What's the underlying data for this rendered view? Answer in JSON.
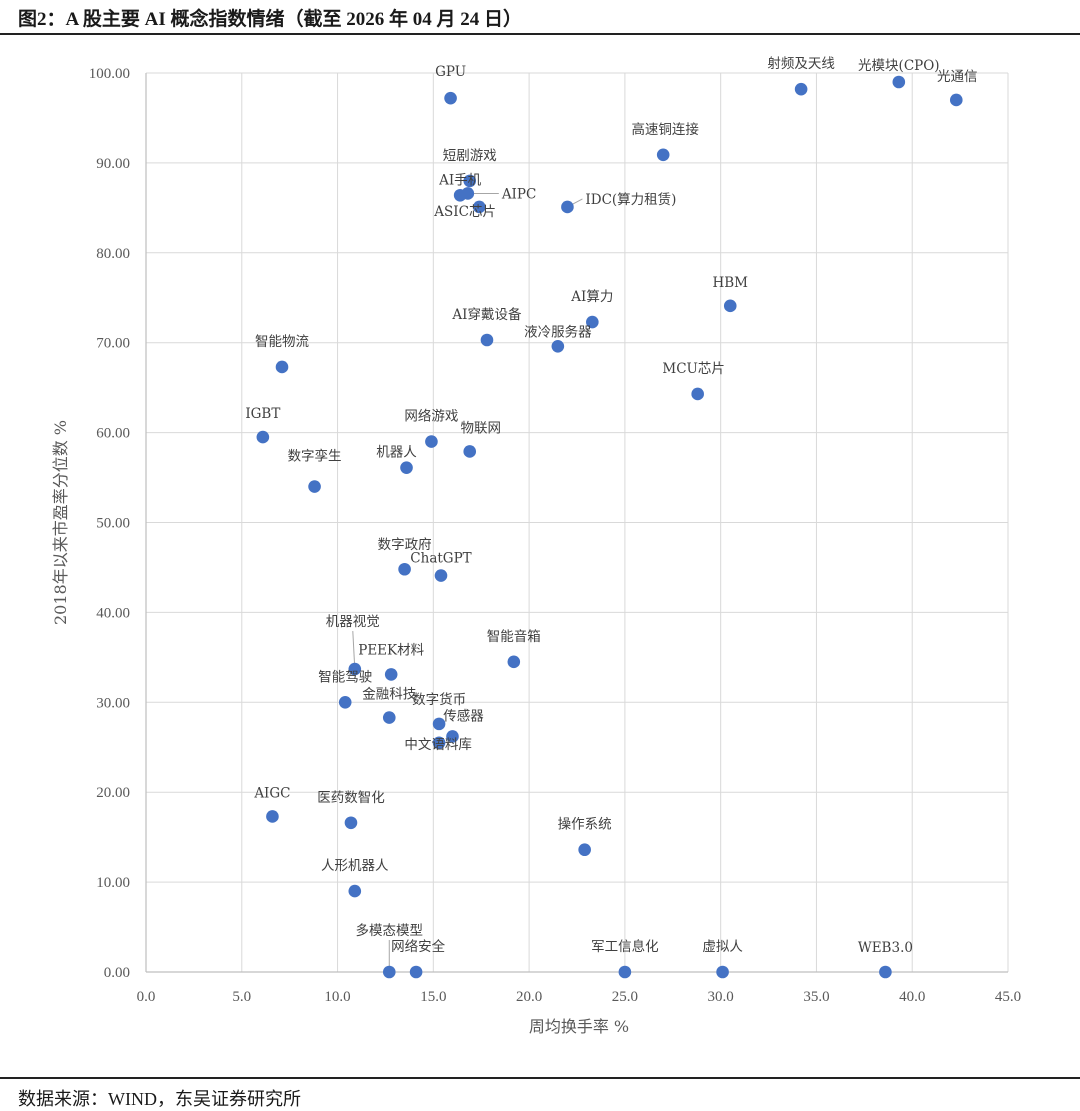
{
  "figure": {
    "title": "图2：A 股主要 AI 概念指数情绪（截至 2026 年 04 月 24 日）",
    "source": "数据来源：WIND，东吴证券研究所"
  },
  "colors": {
    "point": "#4472C4",
    "grid": "#d9d9d9",
    "axis": "#bfbfbf"
  },
  "chart_data": {
    "type": "scatter",
    "title": "",
    "xlabel": "周均换手率 %",
    "ylabel": "2018年以来市盈率分位数 %",
    "xlim": [
      0,
      45
    ],
    "ylim": [
      0,
      100
    ],
    "x_ticks": [
      {
        "value": 0,
        "label": "0.0"
      },
      {
        "value": 5,
        "label": "5.0"
      },
      {
        "value": 10,
        "label": "10.0"
      },
      {
        "value": 15,
        "label": "15.0"
      },
      {
        "value": 20,
        "label": "20.0"
      },
      {
        "value": 25,
        "label": "25.0"
      },
      {
        "value": 30,
        "label": "30.0"
      },
      {
        "value": 35,
        "label": "35.0"
      },
      {
        "value": 40,
        "label": "40.0"
      },
      {
        "value": 45,
        "label": "45.0"
      }
    ],
    "y_ticks": [
      {
        "value": 0,
        "label": "0.00"
      },
      {
        "value": 10,
        "label": "10.00"
      },
      {
        "value": 20,
        "label": "20.00"
      },
      {
        "value": 30,
        "label": "30.00"
      },
      {
        "value": 40,
        "label": "40.00"
      },
      {
        "value": 50,
        "label": "50.00"
      },
      {
        "value": 60,
        "label": "60.00"
      },
      {
        "value": 70,
        "label": "70.00"
      },
      {
        "value": 80,
        "label": "80.00"
      },
      {
        "value": 90,
        "label": "90.00"
      },
      {
        "value": 100,
        "label": "100.00"
      }
    ],
    "grid": true,
    "points": [
      {
        "name": "GPU",
        "x": 15.9,
        "y": 97.2
      },
      {
        "name": "射频及天线",
        "x": 34.2,
        "y": 98.2
      },
      {
        "name": "光模块(CPO)",
        "x": 39.3,
        "y": 99.0
      },
      {
        "name": "光通信",
        "x": 42.3,
        "y": 97.0
      },
      {
        "name": "高速铜连接",
        "x": 27.0,
        "y": 90.9
      },
      {
        "name": "短剧游戏",
        "x": 16.9,
        "y": 88.0
      },
      {
        "name": "AI手机",
        "x": 16.4,
        "y": 86.4
      },
      {
        "name": "AIPC",
        "x": 16.8,
        "y": 86.6
      },
      {
        "name": "ASIC芯片",
        "x": 17.4,
        "y": 85.1
      },
      {
        "name": "IDC(算力租赁)",
        "x": 22.0,
        "y": 85.1
      },
      {
        "name": "HBM",
        "x": 30.5,
        "y": 74.1
      },
      {
        "name": "AI算力",
        "x": 23.3,
        "y": 72.3
      },
      {
        "name": "AI穿戴设备",
        "x": 17.8,
        "y": 70.3
      },
      {
        "name": "液冷服务器",
        "x": 21.5,
        "y": 69.6
      },
      {
        "name": "智能物流",
        "x": 7.1,
        "y": 67.3
      },
      {
        "name": "MCU芯片",
        "x": 28.8,
        "y": 64.3
      },
      {
        "name": "IGBT",
        "x": 6.1,
        "y": 59.5
      },
      {
        "name": "网络游戏",
        "x": 14.9,
        "y": 59.0
      },
      {
        "name": "物联网",
        "x": 16.9,
        "y": 57.9
      },
      {
        "name": "机器人",
        "x": 13.6,
        "y": 56.1
      },
      {
        "name": "数字孪生",
        "x": 8.8,
        "y": 54.0
      },
      {
        "name": "数字政府",
        "x": 13.5,
        "y": 44.8
      },
      {
        "name": "ChatGPT",
        "x": 15.4,
        "y": 44.1
      },
      {
        "name": "智能音箱",
        "x": 19.2,
        "y": 34.5
      },
      {
        "name": "机器视觉",
        "x": 10.9,
        "y": 33.7
      },
      {
        "name": "PEEK材料",
        "x": 12.8,
        "y": 33.1
      },
      {
        "name": "智能驾驶",
        "x": 10.4,
        "y": 30.0
      },
      {
        "name": "金融科技",
        "x": 12.7,
        "y": 28.3
      },
      {
        "name": "数字货币",
        "x": 15.3,
        "y": 27.6
      },
      {
        "name": "传感器",
        "x": 16.0,
        "y": 26.2
      },
      {
        "name": "中文语料库",
        "x": 15.3,
        "y": 25.5
      },
      {
        "name": "AIGC",
        "x": 6.6,
        "y": 17.3
      },
      {
        "name": "医药数智化",
        "x": 10.7,
        "y": 16.6
      },
      {
        "name": "操作系统",
        "x": 22.9,
        "y": 13.6
      },
      {
        "name": "人形机器人",
        "x": 10.9,
        "y": 9.0
      },
      {
        "name": "多模态模型",
        "x": 12.7,
        "y": 0.0
      },
      {
        "name": "网络安全",
        "x": 14.1,
        "y": 0.0
      },
      {
        "name": "军工信息化",
        "x": 25.0,
        "y": 0.0
      },
      {
        "name": "虚拟人",
        "x": 30.1,
        "y": 0.0
      },
      {
        "name": "WEB3.0",
        "x": 38.6,
        "y": 0.0
      }
    ]
  }
}
